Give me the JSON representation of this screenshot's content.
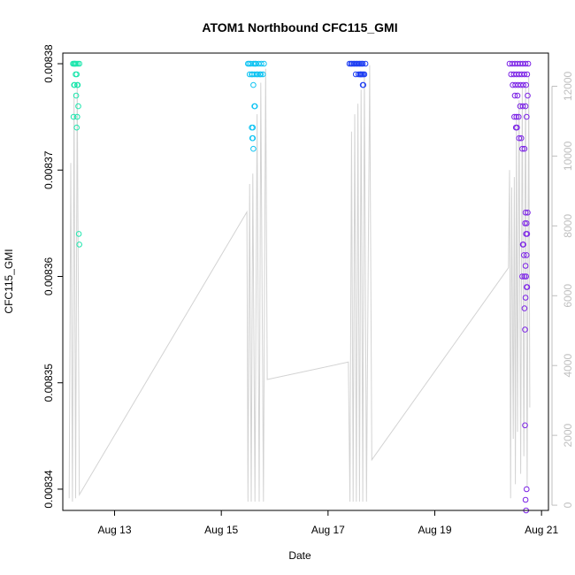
{
  "chart_data": {
    "type": "scatter",
    "title": "ATOM1 Northbound CFC115_GMI",
    "xlabel": "Date",
    "ylabel": "CFC115_GMI",
    "x_ticks": [
      "Aug 13",
      "Aug 15",
      "Aug 17",
      "Aug 19",
      "Aug 21"
    ],
    "x_tick_days": [
      13,
      15,
      17,
      19,
      21
    ],
    "xlim": [
      12.03,
      21.13
    ],
    "y_left_ticks": [
      0.00834,
      0.00835,
      0.00836,
      0.00837,
      0.00838
    ],
    "y_left_tick_labels": [
      "0.00834",
      "0.00835",
      "0.00836",
      "0.00837",
      "0.00838"
    ],
    "ylim_left": [
      0.008338,
      0.008381
    ],
    "y_right_ticks": [
      0,
      2000,
      4000,
      6000,
      8000,
      10000,
      12000
    ],
    "ylim_right": [
      -150,
      12950
    ],
    "grid": false,
    "colors": {
      "text": "#000000",
      "right_axis": "#bfbfbf",
      "altitude_line": "#d3d3d3"
    },
    "series": [
      {
        "color": "#1de6ad",
        "points": [
          [
            12.22,
            0.00838
          ],
          [
            12.25,
            0.00838
          ],
          [
            12.28,
            0.00838
          ],
          [
            12.31,
            0.00838
          ],
          [
            12.34,
            0.00838
          ],
          [
            12.26,
            0.00838
          ],
          [
            12.29,
            0.008379
          ],
          [
            12.24,
            0.00838
          ],
          [
            12.3,
            0.008378
          ],
          [
            12.27,
            0.008379
          ],
          [
            12.25,
            0.008378
          ],
          [
            12.31,
            0.008378
          ],
          [
            12.24,
            0.008378
          ],
          [
            12.28,
            0.008377
          ],
          [
            12.32,
            0.008376
          ],
          [
            12.23,
            0.008375
          ],
          [
            12.3,
            0.008375
          ],
          [
            12.29,
            0.008374
          ],
          [
            12.33,
            0.008364
          ],
          [
            12.34,
            0.008363
          ]
        ]
      },
      {
        "color": "#0fc3f2",
        "points": [
          [
            15.5,
            0.00838
          ],
          [
            15.55,
            0.00838
          ],
          [
            15.6,
            0.00838
          ],
          [
            15.65,
            0.00838
          ],
          [
            15.7,
            0.00838
          ],
          [
            15.75,
            0.00838
          ],
          [
            15.8,
            0.00838
          ],
          [
            15.52,
            0.00838
          ],
          [
            15.58,
            0.008379
          ],
          [
            15.63,
            0.00838
          ],
          [
            15.68,
            0.008379
          ],
          [
            15.74,
            0.008379
          ],
          [
            15.78,
            0.008379
          ],
          [
            15.53,
            0.008379
          ],
          [
            15.57,
            0.008379
          ],
          [
            15.62,
            0.008379
          ],
          [
            15.66,
            0.008379
          ],
          [
            15.72,
            0.008379
          ],
          [
            15.6,
            0.008378
          ],
          [
            15.62,
            0.008376
          ],
          [
            15.63,
            0.008376
          ],
          [
            15.57,
            0.008374
          ],
          [
            15.59,
            0.008374
          ],
          [
            15.58,
            0.008373
          ],
          [
            15.59,
            0.008373
          ],
          [
            15.6,
            0.008372
          ]
        ]
      },
      {
        "color": "#1f3ff2",
        "points": [
          [
            17.4,
            0.00838
          ],
          [
            17.45,
            0.00838
          ],
          [
            17.5,
            0.00838
          ],
          [
            17.55,
            0.00838
          ],
          [
            17.6,
            0.00838
          ],
          [
            17.65,
            0.00838
          ],
          [
            17.7,
            0.00838
          ],
          [
            17.43,
            0.00838
          ],
          [
            17.48,
            0.00838
          ],
          [
            17.53,
            0.00838
          ],
          [
            17.58,
            0.00838
          ],
          [
            17.63,
            0.00838
          ],
          [
            17.68,
            0.008379
          ],
          [
            17.52,
            0.008379
          ],
          [
            17.57,
            0.008379
          ],
          [
            17.62,
            0.008379
          ],
          [
            17.66,
            0.008379
          ],
          [
            17.6,
            0.008379
          ],
          [
            17.64,
            0.008379
          ],
          [
            17.61,
            0.008379
          ],
          [
            17.65,
            0.008378
          ],
          [
            17.66,
            0.008378
          ]
        ]
      },
      {
        "color": "#7b22e6",
        "points": [
          [
            20.4,
            0.00838
          ],
          [
            20.45,
            0.00838
          ],
          [
            20.5,
            0.00838
          ],
          [
            20.55,
            0.00838
          ],
          [
            20.6,
            0.00838
          ],
          [
            20.65,
            0.00838
          ],
          [
            20.7,
            0.00838
          ],
          [
            20.75,
            0.00838
          ],
          [
            20.43,
            0.008379
          ],
          [
            20.48,
            0.008379
          ],
          [
            20.53,
            0.008379
          ],
          [
            20.58,
            0.008379
          ],
          [
            20.63,
            0.008379
          ],
          [
            20.68,
            0.008379
          ],
          [
            20.73,
            0.008379
          ],
          [
            20.46,
            0.008378
          ],
          [
            20.51,
            0.008378
          ],
          [
            20.56,
            0.008378
          ],
          [
            20.61,
            0.008378
          ],
          [
            20.66,
            0.008378
          ],
          [
            20.71,
            0.008378
          ],
          [
            20.74,
            0.008377
          ],
          [
            20.5,
            0.008377
          ],
          [
            20.55,
            0.008377
          ],
          [
            20.6,
            0.008376
          ],
          [
            20.65,
            0.008376
          ],
          [
            20.7,
            0.008376
          ],
          [
            20.72,
            0.008375
          ],
          [
            20.49,
            0.008375
          ],
          [
            20.53,
            0.008375
          ],
          [
            20.57,
            0.008375
          ],
          [
            20.52,
            0.008374
          ],
          [
            20.54,
            0.008374
          ],
          [
            20.58,
            0.008373
          ],
          [
            20.62,
            0.008373
          ],
          [
            20.68,
            0.008372
          ],
          [
            20.64,
            0.008372
          ],
          [
            20.7,
            0.008366
          ],
          [
            20.74,
            0.008366
          ],
          [
            20.69,
            0.008365
          ],
          [
            20.72,
            0.008365
          ],
          [
            20.73,
            0.008364
          ],
          [
            20.71,
            0.008364
          ],
          [
            20.65,
            0.008363
          ],
          [
            20.66,
            0.008363
          ],
          [
            20.72,
            0.008362
          ],
          [
            20.67,
            0.008362
          ],
          [
            20.7,
            0.008361
          ],
          [
            20.64,
            0.00836
          ],
          [
            20.71,
            0.00836
          ],
          [
            20.68,
            0.00836
          ],
          [
            20.73,
            0.008359
          ],
          [
            20.72,
            0.008359
          ],
          [
            20.7,
            0.008358
          ],
          [
            20.68,
            0.008357
          ],
          [
            20.69,
            0.008355
          ],
          [
            20.69,
            0.008346
          ],
          [
            20.72,
            0.00834
          ],
          [
            20.7,
            0.008339
          ],
          [
            20.71,
            0.008338
          ]
        ]
      }
    ],
    "altitude_path": [
      [
        12.15,
        0.2
      ],
      [
        12.18,
        9.8
      ],
      [
        12.21,
        0.1
      ],
      [
        12.24,
        11.8
      ],
      [
        12.27,
        0.2
      ],
      [
        12.3,
        12.1
      ],
      [
        12.34,
        0.3
      ],
      [
        15.48,
        8.4
      ],
      [
        15.5,
        0.1
      ],
      [
        15.53,
        9.2
      ],
      [
        15.56,
        0.1
      ],
      [
        15.59,
        9.5
      ],
      [
        15.63,
        0.1
      ],
      [
        15.67,
        11.2
      ],
      [
        15.71,
        0.1
      ],
      [
        15.74,
        12.1
      ],
      [
        15.79,
        0.1
      ],
      [
        15.83,
        12.5
      ],
      [
        15.86,
        3.6
      ],
      [
        17.38,
        4.1
      ],
      [
        17.41,
        0.1
      ],
      [
        17.44,
        10.7
      ],
      [
        17.47,
        0.1
      ],
      [
        17.5,
        11.2
      ],
      [
        17.53,
        0.1
      ],
      [
        17.56,
        11.5
      ],
      [
        17.59,
        0.1
      ],
      [
        17.62,
        11.9
      ],
      [
        17.65,
        0.1
      ],
      [
        17.68,
        12.3
      ],
      [
        17.72,
        0.1
      ],
      [
        17.78,
        12.6
      ],
      [
        17.82,
        1.3
      ],
      [
        20.38,
        6.8
      ],
      [
        20.4,
        9.6
      ],
      [
        20.42,
        0.2
      ],
      [
        20.44,
        9.1
      ],
      [
        20.47,
        1.9
      ],
      [
        20.49,
        9.4
      ],
      [
        20.51,
        0.6
      ],
      [
        20.53,
        11.2
      ],
      [
        20.55,
        2.1
      ],
      [
        20.58,
        11.6
      ],
      [
        20.61,
        0.9
      ],
      [
        20.64,
        12.0
      ],
      [
        20.67,
        1.4
      ],
      [
        20.7,
        12.1
      ],
      [
        20.73,
        0.5
      ],
      [
        20.76,
        12.3
      ],
      [
        20.78,
        2.8
      ]
    ]
  }
}
